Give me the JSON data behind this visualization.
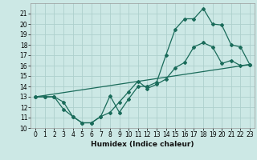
{
  "title": "",
  "xlabel": "Humidex (Indice chaleur)",
  "bg_color": "#cce8e5",
  "grid_color": "#aed0cc",
  "line_color": "#1a6b5a",
  "xlim": [
    -0.5,
    23.5
  ],
  "ylim": [
    10,
    22
  ],
  "xticks": [
    0,
    1,
    2,
    3,
    4,
    5,
    6,
    7,
    8,
    9,
    10,
    11,
    12,
    13,
    14,
    15,
    16,
    17,
    18,
    19,
    20,
    21,
    22,
    23
  ],
  "yticks": [
    10,
    11,
    12,
    13,
    14,
    15,
    16,
    17,
    18,
    19,
    20,
    21
  ],
  "line1_x": [
    0,
    1,
    2,
    3,
    4,
    5,
    6,
    7,
    8,
    9,
    10,
    11,
    12,
    13,
    14,
    15,
    16,
    17,
    18,
    19,
    20,
    21,
    22,
    23
  ],
  "line1_y": [
    13.0,
    13.0,
    13.0,
    11.8,
    11.1,
    10.5,
    10.5,
    11.1,
    13.1,
    11.5,
    12.8,
    14.0,
    14.0,
    14.4,
    17.0,
    19.5,
    20.5,
    20.5,
    21.5,
    20.0,
    19.9,
    18.0,
    17.8,
    16.1
  ],
  "line2_x": [
    0,
    1,
    2,
    3,
    4,
    5,
    6,
    7,
    8,
    9,
    10,
    11,
    12,
    13,
    14,
    15,
    16,
    17,
    18,
    19,
    20,
    21,
    22,
    23
  ],
  "line2_y": [
    13.0,
    13.0,
    13.0,
    12.5,
    11.1,
    10.5,
    10.5,
    11.1,
    11.5,
    12.5,
    13.5,
    14.5,
    13.8,
    14.2,
    14.7,
    15.8,
    16.3,
    17.8,
    18.2,
    17.8,
    16.2,
    16.5,
    16.0,
    16.1
  ],
  "line3_x": [
    0,
    23
  ],
  "line3_y": [
    13.0,
    16.1
  ],
  "marker_size": 2.0,
  "line_width": 0.9,
  "tick_fontsize": 5.5,
  "xlabel_fontsize": 6.5
}
